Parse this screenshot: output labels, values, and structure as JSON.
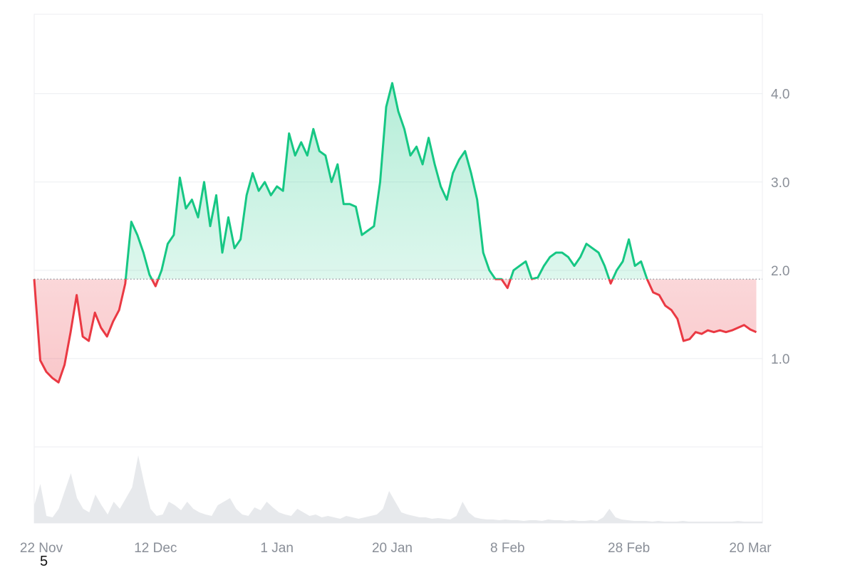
{
  "footnote": "5",
  "colors": {
    "up": "#16c784",
    "down": "#ea3943",
    "grid": "#eceef1",
    "volume": "#e7e9ec",
    "baseline": "#8a8f98"
  },
  "chart_data": {
    "type": "line",
    "title": "",
    "xlabel": "",
    "ylabel": "",
    "x_range": [
      "2024-11-22",
      "2025-03-22"
    ],
    "ylim": [
      0,
      4.9
    ],
    "baseline": 1.9,
    "grid": true,
    "x_ticks": [
      {
        "date": "2024-11-22",
        "label": "22 Nov"
      },
      {
        "date": "2024-12-12",
        "label": "12 Dec"
      },
      {
        "date": "2025-01-01",
        "label": "1 Jan"
      },
      {
        "date": "2025-01-20",
        "label": "20 Jan"
      },
      {
        "date": "2025-02-08",
        "label": "8 Feb"
      },
      {
        "date": "2025-02-28",
        "label": "28 Feb"
      },
      {
        "date": "2025-03-20",
        "label": "20 Mar"
      }
    ],
    "y_ticks": [
      {
        "value": 1.0,
        "label": "1.0"
      },
      {
        "value": 2.0,
        "label": "2.0"
      },
      {
        "value": 3.0,
        "label": "3.0"
      },
      {
        "value": 4.0,
        "label": "4.0"
      }
    ],
    "price": [
      [
        "2024-11-22",
        1.9
      ],
      [
        "2024-11-23",
        0.98
      ],
      [
        "2024-11-24",
        0.85
      ],
      [
        "2024-11-25",
        0.78
      ],
      [
        "2024-11-26",
        0.73
      ],
      [
        "2024-11-27",
        0.93
      ],
      [
        "2024-11-28",
        1.3
      ],
      [
        "2024-11-29",
        1.72
      ],
      [
        "2024-11-30",
        1.25
      ],
      [
        "2024-12-01",
        1.2
      ],
      [
        "2024-12-02",
        1.52
      ],
      [
        "2024-12-03",
        1.35
      ],
      [
        "2024-12-04",
        1.25
      ],
      [
        "2024-12-05",
        1.42
      ],
      [
        "2024-12-06",
        1.55
      ],
      [
        "2024-12-07",
        1.85
      ],
      [
        "2024-12-08",
        2.55
      ],
      [
        "2024-12-09",
        2.4
      ],
      [
        "2024-12-10",
        2.2
      ],
      [
        "2024-12-11",
        1.95
      ],
      [
        "2024-12-12",
        1.82
      ],
      [
        "2024-12-13",
        2.0
      ],
      [
        "2024-12-14",
        2.3
      ],
      [
        "2024-12-15",
        2.4
      ],
      [
        "2024-12-16",
        3.05
      ],
      [
        "2024-12-17",
        2.7
      ],
      [
        "2024-12-18",
        2.8
      ],
      [
        "2024-12-19",
        2.6
      ],
      [
        "2024-12-20",
        3.0
      ],
      [
        "2024-12-21",
        2.5
      ],
      [
        "2024-12-22",
        2.85
      ],
      [
        "2024-12-23",
        2.2
      ],
      [
        "2024-12-24",
        2.6
      ],
      [
        "2024-12-25",
        2.25
      ],
      [
        "2024-12-26",
        2.35
      ],
      [
        "2024-12-27",
        2.85
      ],
      [
        "2024-12-28",
        3.1
      ],
      [
        "2024-12-29",
        2.9
      ],
      [
        "2024-12-30",
        3.0
      ],
      [
        "2024-12-31",
        2.85
      ],
      [
        "2025-01-01",
        2.95
      ],
      [
        "2025-01-02",
        2.9
      ],
      [
        "2025-01-03",
        3.55
      ],
      [
        "2025-01-04",
        3.3
      ],
      [
        "2025-01-05",
        3.45
      ],
      [
        "2025-01-06",
        3.3
      ],
      [
        "2025-01-07",
        3.6
      ],
      [
        "2025-01-08",
        3.35
      ],
      [
        "2025-01-09",
        3.3
      ],
      [
        "2025-01-10",
        3.0
      ],
      [
        "2025-01-11",
        3.2
      ],
      [
        "2025-01-12",
        2.75
      ],
      [
        "2025-01-13",
        2.75
      ],
      [
        "2025-01-14",
        2.72
      ],
      [
        "2025-01-15",
        2.4
      ],
      [
        "2025-01-16",
        2.45
      ],
      [
        "2025-01-17",
        2.5
      ],
      [
        "2025-01-18",
        3.0
      ],
      [
        "2025-01-19",
        3.85
      ],
      [
        "2025-01-20",
        4.12
      ],
      [
        "2025-01-21",
        3.8
      ],
      [
        "2025-01-22",
        3.6
      ],
      [
        "2025-01-23",
        3.3
      ],
      [
        "2025-01-24",
        3.4
      ],
      [
        "2025-01-25",
        3.2
      ],
      [
        "2025-01-26",
        3.5
      ],
      [
        "2025-01-27",
        3.2
      ],
      [
        "2025-01-28",
        2.95
      ],
      [
        "2025-01-29",
        2.8
      ],
      [
        "2025-01-30",
        3.1
      ],
      [
        "2025-01-31",
        3.25
      ],
      [
        "2025-02-01",
        3.35
      ],
      [
        "2025-02-02",
        3.1
      ],
      [
        "2025-02-03",
        2.8
      ],
      [
        "2025-02-04",
        2.2
      ],
      [
        "2025-02-05",
        2.0
      ],
      [
        "2025-02-06",
        1.9
      ],
      [
        "2025-02-07",
        1.9
      ],
      [
        "2025-02-08",
        1.8
      ],
      [
        "2025-02-09",
        2.0
      ],
      [
        "2025-02-10",
        2.05
      ],
      [
        "2025-02-11",
        2.1
      ],
      [
        "2025-02-12",
        1.9
      ],
      [
        "2025-02-13",
        1.92
      ],
      [
        "2025-02-14",
        2.05
      ],
      [
        "2025-02-15",
        2.15
      ],
      [
        "2025-02-16",
        2.2
      ],
      [
        "2025-02-17",
        2.2
      ],
      [
        "2025-02-18",
        2.15
      ],
      [
        "2025-02-19",
        2.05
      ],
      [
        "2025-02-20",
        2.15
      ],
      [
        "2025-02-21",
        2.3
      ],
      [
        "2025-02-22",
        2.25
      ],
      [
        "2025-02-23",
        2.2
      ],
      [
        "2025-02-24",
        2.05
      ],
      [
        "2025-02-25",
        1.85
      ],
      [
        "2025-02-26",
        2.0
      ],
      [
        "2025-02-27",
        2.1
      ],
      [
        "2025-02-28",
        2.35
      ],
      [
        "2025-03-01",
        2.05
      ],
      [
        "2025-03-02",
        2.1
      ],
      [
        "2025-03-03",
        1.9
      ],
      [
        "2025-03-04",
        1.75
      ],
      [
        "2025-03-05",
        1.72
      ],
      [
        "2025-03-06",
        1.6
      ],
      [
        "2025-03-07",
        1.55
      ],
      [
        "2025-03-08",
        1.45
      ],
      [
        "2025-03-09",
        1.2
      ],
      [
        "2025-03-10",
        1.22
      ],
      [
        "2025-03-11",
        1.3
      ],
      [
        "2025-03-12",
        1.28
      ],
      [
        "2025-03-13",
        1.32
      ],
      [
        "2025-03-14",
        1.3
      ],
      [
        "2025-03-15",
        1.32
      ],
      [
        "2025-03-16",
        1.3
      ],
      [
        "2025-03-17",
        1.32
      ],
      [
        "2025-03-18",
        1.35
      ],
      [
        "2025-03-19",
        1.38
      ],
      [
        "2025-03-20",
        1.33
      ],
      [
        "2025-03-21",
        1.3
      ]
    ],
    "volume": [
      0.25,
      0.55,
      0.1,
      0.08,
      0.2,
      0.45,
      0.7,
      0.35,
      0.2,
      0.15,
      0.4,
      0.25,
      0.12,
      0.3,
      0.2,
      0.35,
      0.5,
      0.95,
      0.55,
      0.2,
      0.1,
      0.12,
      0.3,
      0.25,
      0.18,
      0.3,
      0.2,
      0.15,
      0.12,
      0.1,
      0.25,
      0.3,
      0.35,
      0.2,
      0.12,
      0.1,
      0.22,
      0.18,
      0.3,
      0.22,
      0.15,
      0.12,
      0.1,
      0.2,
      0.15,
      0.1,
      0.12,
      0.08,
      0.1,
      0.08,
      0.06,
      0.1,
      0.08,
      0.06,
      0.08,
      0.1,
      0.12,
      0.2,
      0.45,
      0.3,
      0.15,
      0.12,
      0.1,
      0.08,
      0.08,
      0.06,
      0.07,
      0.06,
      0.05,
      0.1,
      0.3,
      0.15,
      0.08,
      0.06,
      0.05,
      0.05,
      0.04,
      0.05,
      0.04,
      0.04,
      0.03,
      0.04,
      0.04,
      0.03,
      0.05,
      0.04,
      0.04,
      0.03,
      0.04,
      0.03,
      0.03,
      0.04,
      0.03,
      0.08,
      0.2,
      0.08,
      0.05,
      0.04,
      0.03,
      0.03,
      0.03,
      0.02,
      0.03,
      0.02,
      0.02,
      0.02,
      0.03,
      0.02,
      0.02,
      0.02,
      0.02,
      0.02,
      0.02,
      0.02,
      0.02,
      0.03,
      0.02,
      0.02,
      0.02,
      0.02
    ]
  }
}
